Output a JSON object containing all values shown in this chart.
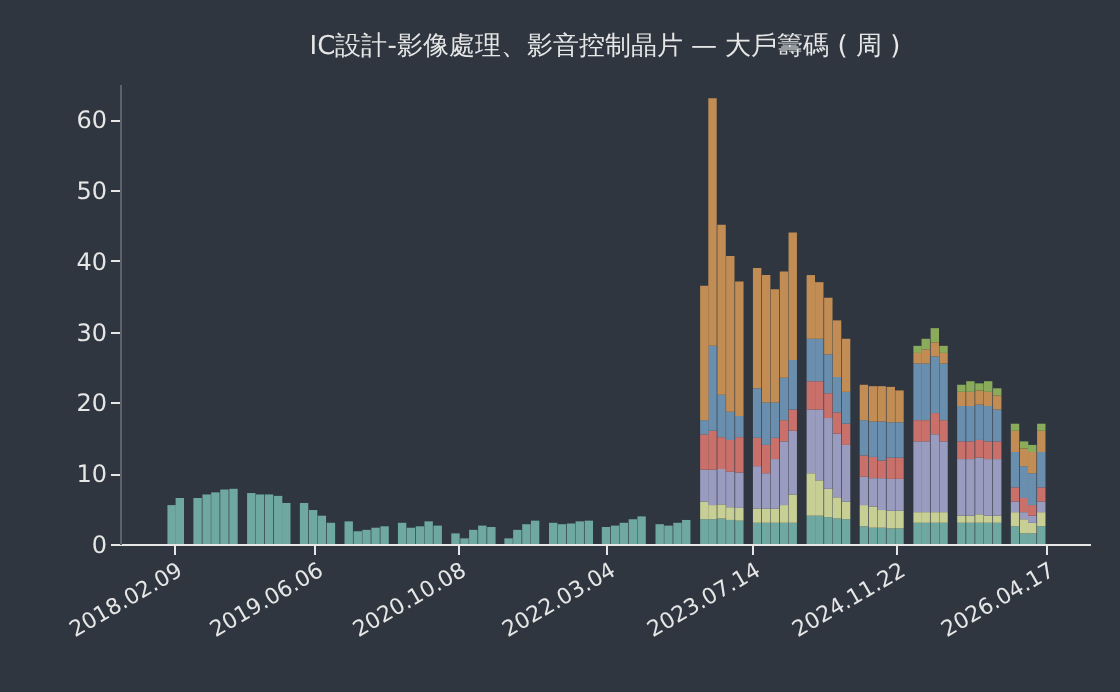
{
  "chart_data": {
    "type": "bar",
    "stacked": true,
    "title": "IC設計-影像處理、影音控制晶片 — 大戶籌碼 ( 周 )",
    "x": [
      "2018-02",
      "2018-03",
      "2018-04",
      "2018-05",
      "2018-06",
      "2018-07",
      "2018-08",
      "2018-09",
      "2018-10",
      "2018-11",
      "2018-12",
      "2019-01",
      "2019-02",
      "2019-03",
      "2019-04",
      "2019-05",
      "2019-06",
      "2019-07",
      "2019-08",
      "2019-09",
      "2019-10",
      "2019-11",
      "2019-12",
      "2020-01",
      "2020-02",
      "2020-03",
      "2020-04",
      "2020-05",
      "2020-06",
      "2020-07",
      "2020-08",
      "2020-09",
      "2020-10",
      "2020-11",
      "2020-12",
      "2021-01",
      "2021-02",
      "2021-03",
      "2021-04",
      "2021-05",
      "2021-06",
      "2021-07",
      "2021-08",
      "2021-09",
      "2021-10",
      "2021-11",
      "2021-12",
      "2022-01",
      "2022-02",
      "2022-03",
      "2022-04",
      "2022-05",
      "2022-06",
      "2022-07",
      "2022-08",
      "2022-09",
      "2022-10",
      "2022-11",
      "2022-12",
      "2023-01",
      "2023-02",
      "2023-03",
      "2023-04",
      "2023-05",
      "2023-06",
      "2023-07",
      "2023-08",
      "2023-09",
      "2023-10",
      "2023-11",
      "2023-12",
      "2024-01",
      "2024-02",
      "2024-03",
      "2024-04",
      "2024-05",
      "2024-06",
      "2024-07",
      "2024-08",
      "2024-09",
      "2024-10",
      "2024-11",
      "2024-12",
      "2025-01",
      "2025-02",
      "2025-03",
      "2025-04",
      "2025-05",
      "2025-06",
      "2025-07",
      "2025-08",
      "2025-09",
      "2025-10",
      "2025-11",
      "2025-12",
      "2026-01",
      "2026-02",
      "2026-03",
      "2026-04"
    ],
    "xlim": [
      "2017-08-08",
      "2026-09-15"
    ],
    "xticks": [
      {
        "value": "2018-02-09",
        "label": "2018.02.09"
      },
      {
        "value": "2019-06-06",
        "label": "2019.06.06"
      },
      {
        "value": "2020-10-08",
        "label": "2020.10.08"
      },
      {
        "value": "2022-03-04",
        "label": "2022.03.04"
      },
      {
        "value": "2023-07-14",
        "label": "2023.07.14"
      },
      {
        "value": "2024-11-22",
        "label": "2024.11.22"
      },
      {
        "value": "2026-04-17",
        "label": "2026.04.17"
      }
    ],
    "ylim": [
      0,
      65
    ],
    "yticks": [
      0,
      10,
      20,
      30,
      40,
      50,
      60
    ],
    "grid": false,
    "series": [
      {
        "color": "#6fa8a0",
        "values": [
          5.5,
          6.5,
          null,
          6.5,
          7,
          7.3,
          7.7,
          7.8,
          null,
          7.2,
          7.0,
          7.0,
          6.8,
          5.8,
          null,
          5.8,
          4.8,
          4.0,
          3.0,
          null,
          3.2,
          1.8,
          2.0,
          2.3,
          2.5,
          null,
          3.0,
          2.3,
          2.5,
          3.2,
          2.6,
          null,
          1.5,
          0.8,
          2.0,
          2.6,
          2.4,
          null,
          0.8,
          2.0,
          2.8,
          3.3,
          null,
          3.0,
          2.8,
          2.9,
          3.2,
          3.3,
          null,
          2.4,
          2.6,
          3.0,
          3.5,
          3.9,
          null,
          2.8,
          2.6,
          3.0,
          3.4,
          null,
          3.5,
          3.5,
          3.6,
          3.4,
          3.3,
          null,
          3,
          3,
          3,
          3,
          3,
          null,
          4,
          4,
          3.8,
          3.6,
          3.5,
          null,
          2.5,
          2.3,
          2.3,
          2.2,
          2.2,
          null,
          3,
          3,
          3,
          3,
          null,
          3,
          3,
          3,
          3,
          3,
          null,
          2.5,
          1.5,
          1.5,
          2.5
        ]
      },
      {
        "color": "#c8cf95",
        "values": [
          null,
          null,
          null,
          null,
          null,
          null,
          null,
          null,
          null,
          null,
          null,
          null,
          null,
          null,
          null,
          null,
          null,
          null,
          null,
          null,
          null,
          null,
          null,
          null,
          null,
          null,
          null,
          null,
          null,
          null,
          null,
          null,
          null,
          null,
          null,
          null,
          null,
          null,
          null,
          null,
          null,
          null,
          null,
          null,
          null,
          null,
          null,
          null,
          null,
          null,
          null,
          null,
          null,
          null,
          null,
          null,
          null,
          null,
          null,
          null,
          2.5,
          2.0,
          2.0,
          1.8,
          1.8,
          null,
          2,
          2,
          2,
          2.5,
          4,
          null,
          6,
          5,
          4,
          3,
          2.5,
          null,
          3,
          3,
          2.5,
          2.5,
          2.5,
          null,
          1.5,
          1.5,
          1.5,
          1.5,
          null,
          1,
          1,
          1.2,
          1,
          1,
          null,
          2,
          2,
          1.5,
          2
        ]
      },
      {
        "color": "#9a9cbf",
        "values": [
          null,
          null,
          null,
          null,
          null,
          null,
          null,
          null,
          null,
          null,
          null,
          null,
          null,
          null,
          null,
          null,
          null,
          null,
          null,
          null,
          null,
          null,
          null,
          null,
          null,
          null,
          null,
          null,
          null,
          null,
          null,
          null,
          null,
          null,
          null,
          null,
          null,
          null,
          null,
          null,
          null,
          null,
          null,
          null,
          null,
          null,
          null,
          null,
          null,
          null,
          null,
          null,
          null,
          null,
          null,
          null,
          null,
          null,
          null,
          null,
          4.5,
          5,
          5,
          5,
          5,
          null,
          6,
          5,
          7,
          9,
          9,
          null,
          9,
          10,
          10,
          9,
          8,
          null,
          4,
          4,
          4.5,
          4.5,
          4.5,
          null,
          10,
          10,
          11,
          10,
          null,
          8,
          8,
          8,
          8,
          8,
          null,
          1.5,
          1,
          1,
          1.5
        ]
      },
      {
        "color": "#c9706a",
        "values": [
          null,
          null,
          null,
          null,
          null,
          null,
          null,
          null,
          null,
          null,
          null,
          null,
          null,
          null,
          null,
          null,
          null,
          null,
          null,
          null,
          null,
          null,
          null,
          null,
          null,
          null,
          null,
          null,
          null,
          null,
          null,
          null,
          null,
          null,
          null,
          null,
          null,
          null,
          null,
          null,
          null,
          null,
          null,
          null,
          null,
          null,
          null,
          null,
          null,
          null,
          null,
          null,
          null,
          null,
          null,
          null,
          null,
          null,
          null,
          null,
          5,
          5.5,
          4.5,
          4.5,
          5,
          null,
          4,
          4,
          3,
          3,
          3,
          null,
          4,
          4,
          3.5,
          3,
          3,
          null,
          3,
          3,
          2.5,
          3,
          3,
          null,
          3,
          3,
          3,
          3,
          null,
          2.5,
          2.5,
          2.5,
          2.5,
          2.5,
          null,
          2,
          2,
          1.5,
          2
        ]
      },
      {
        "color": "#6a8fae",
        "values": [
          null,
          null,
          null,
          null,
          null,
          null,
          null,
          null,
          null,
          null,
          null,
          null,
          null,
          null,
          null,
          null,
          null,
          null,
          null,
          null,
          null,
          null,
          null,
          null,
          null,
          null,
          null,
          null,
          null,
          null,
          null,
          null,
          null,
          null,
          null,
          null,
          null,
          null,
          null,
          null,
          null,
          null,
          null,
          null,
          null,
          null,
          null,
          null,
          null,
          null,
          null,
          null,
          null,
          null,
          null,
          null,
          null,
          null,
          null,
          null,
          2,
          12,
          6,
          4,
          3,
          null,
          7,
          6,
          5,
          6,
          7,
          null,
          6,
          6,
          5.5,
          5,
          4.5,
          null,
          5,
          5,
          5.5,
          5,
          5,
          null,
          8,
          8,
          8,
          8,
          null,
          5,
          5,
          5,
          5,
          4.5,
          null,
          5,
          4.5,
          4.5,
          5
        ]
      },
      {
        "color": "#c28d55",
        "values": [
          null,
          null,
          null,
          null,
          null,
          null,
          null,
          null,
          null,
          null,
          null,
          null,
          null,
          null,
          null,
          null,
          null,
          null,
          null,
          null,
          null,
          null,
          null,
          null,
          null,
          null,
          null,
          null,
          null,
          null,
          null,
          null,
          null,
          null,
          null,
          null,
          null,
          null,
          null,
          null,
          null,
          null,
          null,
          null,
          null,
          null,
          null,
          null,
          null,
          null,
          null,
          null,
          null,
          null,
          null,
          null,
          null,
          null,
          null,
          null,
          19,
          35,
          24,
          22,
          19,
          null,
          17,
          18,
          16,
          15,
          18,
          null,
          9,
          8,
          8,
          8,
          7.5,
          null,
          5,
          5,
          5,
          5,
          4.5,
          null,
          1.5,
          2,
          2,
          1.5,
          null,
          2,
          2,
          2,
          2,
          2,
          null,
          3,
          2.5,
          3,
          3
        ]
      },
      {
        "color": "#8aab5a",
        "values": [
          null,
          null,
          null,
          null,
          null,
          null,
          null,
          null,
          null,
          null,
          null,
          null,
          null,
          null,
          null,
          null,
          null,
          null,
          null,
          null,
          null,
          null,
          null,
          null,
          null,
          null,
          null,
          null,
          null,
          null,
          null,
          null,
          null,
          null,
          null,
          null,
          null,
          null,
          null,
          null,
          null,
          null,
          null,
          null,
          null,
          null,
          null,
          null,
          null,
          null,
          null,
          null,
          null,
          null,
          null,
          null,
          null,
          null,
          null,
          null,
          null,
          null,
          null,
          null,
          null,
          null,
          null,
          null,
          null,
          null,
          null,
          null,
          null,
          null,
          null,
          null,
          null,
          null,
          null,
          null,
          null,
          null,
          null,
          null,
          1,
          1.5,
          2,
          1,
          null,
          1,
          1.5,
          1,
          1.5,
          1,
          null,
          1,
          1,
          1,
          1
        ]
      }
    ]
  }
}
